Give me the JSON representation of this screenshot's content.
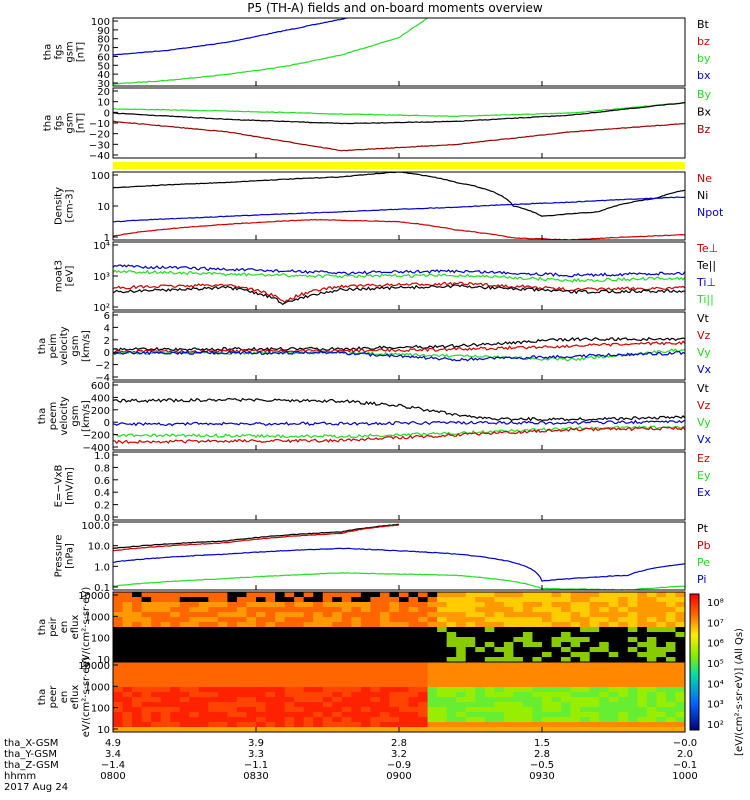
{
  "title": "P5 (TH-A) fields and on-board moments overview",
  "colors": {
    "black": "#000000",
    "red": "#cc0000",
    "green": "#22dd22",
    "blue": "#0000cc",
    "darkred": "#990000",
    "yellow": "#ffff00"
  },
  "chart_data": [
    {
      "type": "line",
      "ylabel": "tha fgs gsm [nT]",
      "ylim": [
        30,
        100
      ],
      "yticks": [
        "100",
        "90",
        "80",
        "70",
        "60",
        "50",
        "40",
        "30"
      ],
      "legend": [
        {
          "name": "Bt",
          "color": "#000000"
        },
        {
          "name": "bz",
          "color": "#cc0000"
        },
        {
          "name": "by",
          "color": "#22dd22"
        },
        {
          "name": "bx",
          "color": "#0000cc"
        }
      ],
      "series": [
        {
          "name": "bx",
          "color": "#0000cc",
          "x": [
            0,
            0.1,
            0.2,
            0.3,
            0.41
          ],
          "y": [
            62,
            67,
            75,
            87,
            100
          ]
        },
        {
          "name": "by",
          "color": "#22dd22",
          "x": [
            0,
            0.1,
            0.2,
            0.3,
            0.4,
            0.5,
            0.55
          ],
          "y": [
            32,
            36,
            42,
            50,
            62,
            80,
            100
          ]
        }
      ]
    },
    {
      "type": "line",
      "ylabel": "tha fgs gsm [nT]",
      "ylim": [
        -45,
        22
      ],
      "yticks": [
        "20",
        "10",
        "0",
        "−10",
        "−20",
        "−30",
        "−40"
      ],
      "legend": [
        {
          "name": "By",
          "color": "#22dd22"
        },
        {
          "name": "Bx",
          "color": "#000000"
        },
        {
          "name": "Bz",
          "color": "#990000"
        }
      ],
      "series": [
        {
          "name": "By",
          "color": "#22dd22",
          "x": [
            0,
            0.2,
            0.4,
            0.6,
            0.8,
            1.0
          ],
          "y": [
            2,
            0,
            -3,
            -5,
            -2,
            8
          ]
        },
        {
          "name": "Bx",
          "color": "#000000",
          "x": [
            0,
            0.2,
            0.4,
            0.6,
            0.8,
            1.0
          ],
          "y": [
            -2,
            -8,
            -12,
            -10,
            -4,
            8
          ]
        },
        {
          "name": "Bz",
          "color": "#990000",
          "x": [
            0,
            0.2,
            0.4,
            0.6,
            0.8,
            1.0
          ],
          "y": [
            -10,
            -20,
            -38,
            -32,
            -20,
            -12
          ]
        }
      ]
    },
    {
      "type": "line",
      "ylabel": "Density [cm-3]",
      "yscale": "log",
      "ylim": [
        0.5,
        200
      ],
      "yticks": [
        "100",
        "10",
        "1"
      ],
      "legend": [
        {
          "name": "Ne",
          "color": "#cc0000"
        },
        {
          "name": "Ni",
          "color": "#000000"
        },
        {
          "name": "Npot",
          "color": "#0000cc"
        }
      ],
      "series": [
        {
          "name": "Ni",
          "color": "#000000",
          "x": [
            0,
            0.2,
            0.4,
            0.5,
            0.6,
            0.7,
            0.75,
            0.85,
            0.95,
            1.0
          ],
          "y": [
            50,
            80,
            130,
            200,
            80,
            10,
            4,
            6,
            20,
            40
          ]
        },
        {
          "name": "Npot",
          "color": "#0000cc",
          "x": [
            0,
            0.2,
            0.4,
            0.6,
            0.8,
            1.0
          ],
          "y": [
            2.5,
            4,
            6,
            9,
            14,
            22
          ]
        },
        {
          "name": "Ne",
          "color": "#cc0000",
          "x": [
            0,
            0.2,
            0.35,
            0.5,
            0.6,
            0.7,
            0.8,
            1.0
          ],
          "y": [
            0.7,
            2,
            3,
            2.5,
            1.2,
            0.6,
            0.5,
            0.8
          ]
        }
      ]
    },
    {
      "type": "line",
      "ylabel": "moat3 [eV]",
      "yscale": "log",
      "ylim": [
        70,
        50000
      ],
      "yticks": [
        "10⁴",
        "10³",
        "10²"
      ],
      "legend": [
        {
          "name": "Te⊥",
          "color": "#cc0000"
        },
        {
          "name": "Te||",
          "color": "#000000"
        },
        {
          "name": "Ti⊥",
          "color": "#0000cc"
        },
        {
          "name": "Ti||",
          "color": "#22dd22"
        }
      ],
      "series": [
        {
          "name": "Ti⊥",
          "color": "#0000cc",
          "x": [
            0,
            0.2,
            0.4,
            0.6,
            0.8,
            1.0
          ],
          "y": [
            5000,
            3500,
            2500,
            3000,
            2000,
            2500
          ]
        },
        {
          "name": "Ti||",
          "color": "#22dd22",
          "x": [
            0,
            0.2,
            0.4,
            0.6,
            0.8,
            1.0
          ],
          "y": [
            3000,
            2200,
            1800,
            2000,
            1200,
            1500
          ]
        },
        {
          "name": "Te⊥",
          "color": "#cc0000",
          "x": [
            0,
            0.2,
            0.3,
            0.4,
            0.6,
            0.8,
            1.0
          ],
          "y": [
            600,
            800,
            150,
            700,
            900,
            500,
            600
          ]
        },
        {
          "name": "Te||",
          "color": "#000000",
          "x": [
            0,
            0.2,
            0.3,
            0.4,
            0.6,
            0.8,
            1.0
          ],
          "y": [
            400,
            600,
            120,
            500,
            700,
            400,
            450
          ]
        }
      ]
    },
    {
      "type": "line",
      "ylabel": "tha peim velocity gsm [km/s]",
      "ylim": [
        -4,
        6
      ],
      "yticks": [
        "6",
        "4",
        "2",
        "0",
        "−2",
        "−4"
      ],
      "legend": [
        {
          "name": "Vt",
          "color": "#000000"
        },
        {
          "name": "Vz",
          "color": "#cc0000"
        },
        {
          "name": "Vy",
          "color": "#22dd22"
        },
        {
          "name": "Vx",
          "color": "#0000cc"
        }
      ],
      "series": [
        {
          "name": "Vt",
          "color": "#000000",
          "x": [
            0,
            0.4,
            0.6,
            0.8,
            1.0
          ],
          "y": [
            0.5,
            0.6,
            1,
            2,
            2
          ]
        },
        {
          "name": "Vz",
          "color": "#cc0000",
          "x": [
            0,
            0.4,
            0.6,
            0.8,
            1.0
          ],
          "y": [
            0.2,
            0.3,
            0.5,
            1,
            1.5
          ]
        },
        {
          "name": "Vy",
          "color": "#22dd22",
          "x": [
            0,
            0.4,
            0.6,
            0.8,
            1.0
          ],
          "y": [
            0,
            0,
            -0.5,
            -1,
            0.5
          ]
        },
        {
          "name": "Vx",
          "color": "#0000cc",
          "x": [
            0,
            0.4,
            0.6,
            0.8,
            1.0
          ],
          "y": [
            0,
            0,
            -1,
            -0.5,
            0
          ]
        }
      ]
    },
    {
      "type": "line",
      "ylabel": "tha peem velocity gsm [km/s]",
      "ylim": [
        -400,
        600
      ],
      "yticks": [
        "600",
        "400",
        "200",
        "0",
        "−200",
        "−400"
      ],
      "legend": [
        {
          "name": "Vt",
          "color": "#000000"
        },
        {
          "name": "Vz",
          "color": "#cc0000"
        },
        {
          "name": "Vy",
          "color": "#22dd22"
        },
        {
          "name": "Vx",
          "color": "#0000cc"
        }
      ],
      "series": [
        {
          "name": "Vt",
          "color": "#000000",
          "x": [
            0,
            0.2,
            0.4,
            0.5,
            0.65,
            0.8,
            1.0
          ],
          "y": [
            320,
            340,
            320,
            250,
            60,
            50,
            80
          ]
        },
        {
          "name": "Vx",
          "color": "#0000cc",
          "x": [
            0,
            0.4,
            0.6,
            0.8,
            1.0
          ],
          "y": [
            -20,
            -10,
            0,
            0,
            20
          ]
        },
        {
          "name": "Vy",
          "color": "#22dd22",
          "x": [
            0,
            0.4,
            0.6,
            0.8,
            1.0
          ],
          "y": [
            -180,
            -200,
            -150,
            -80,
            -60
          ]
        },
        {
          "name": "Vz",
          "color": "#cc0000",
          "x": [
            0,
            0.4,
            0.6,
            0.8,
            1.0
          ],
          "y": [
            -280,
            -260,
            -180,
            -100,
            -80
          ]
        }
      ]
    },
    {
      "type": "line",
      "ylabel": "E=−VxB [mV/m]",
      "ylim": [
        0,
        1
      ],
      "yticks": [
        "1.0",
        "0.8",
        "0.6",
        "0.4",
        "0.2",
        "0.0"
      ],
      "legend": [
        {
          "name": "Ez",
          "color": "#cc0000"
        },
        {
          "name": "Ey",
          "color": "#22dd22"
        },
        {
          "name": "Ex",
          "color": "#0000cc"
        }
      ],
      "series": []
    },
    {
      "type": "line",
      "ylabel": "Pressure [nPa]",
      "yscale": "log",
      "ylim": [
        0.05,
        200
      ],
      "yticks": [
        "100.0",
        "10.0",
        "1.0",
        "0.1"
      ],
      "legend": [
        {
          "name": "Pt",
          "color": "#000000"
        },
        {
          "name": "Pb",
          "color": "#cc0000"
        },
        {
          "name": "Pe",
          "color": "#22dd22"
        },
        {
          "name": "Pi",
          "color": "#0000cc"
        }
      ],
      "series": [
        {
          "name": "Pt",
          "color": "#000000",
          "x": [
            0,
            0.2,
            0.4,
            0.5
          ],
          "y": [
            8,
            20,
            60,
            150
          ]
        },
        {
          "name": "Pb",
          "color": "#cc0000",
          "x": [
            0,
            0.2,
            0.4,
            0.5
          ],
          "y": [
            6,
            16,
            50,
            140
          ]
        },
        {
          "name": "Pi",
          "color": "#0000cc",
          "x": [
            0,
            0.2,
            0.4,
            0.6,
            0.75,
            0.9,
            1.0
          ],
          "y": [
            1.5,
            4,
            8,
            4,
            0.15,
            0.3,
            1.2
          ]
        },
        {
          "name": "Pe",
          "color": "#22dd22",
          "x": [
            0,
            0.2,
            0.4,
            0.6,
            0.75,
            0.9,
            1.0
          ],
          "y": [
            0.08,
            0.2,
            0.4,
            0.3,
            0.06,
            0.05,
            0.08
          ]
        }
      ]
    },
    {
      "type": "heatmap",
      "ylabel": "tha peir en eflux eV/(cm²·s·sr·eV)",
      "yscale": "log",
      "yticks": [
        "10000",
        "1000",
        "100",
        "10"
      ]
    },
    {
      "type": "heatmap",
      "ylabel": "tha peer en eflux eV/(cm²·s·sr·eV)",
      "yscale": "log",
      "yticks": [
        "10000",
        "1000",
        "100",
        "10"
      ]
    }
  ],
  "colorbar": {
    "label": "[eV/(cm²·s·sr·eV)] (All Qs)",
    "ticks": [
      "10⁸",
      "10⁷",
      "10⁶",
      "10⁵",
      "10⁴",
      "10³",
      "10²"
    ]
  },
  "xaxis": {
    "row_labels": [
      "tha_X-GSM",
      "tha_Y-GSM",
      "tha_Z-GSM",
      "hhmm",
      "2017 Aug 24"
    ],
    "columns": [
      {
        "vals": [
          "4.9",
          "3.4",
          "−1.4",
          "0800"
        ]
      },
      {
        "vals": [
          "3.9",
          "3.3",
          "−1.1",
          "0830"
        ]
      },
      {
        "vals": [
          "2.8",
          "3.2",
          "−0.9",
          "0900"
        ]
      },
      {
        "vals": [
          "1.5",
          "2.8",
          "−0.5",
          "0930"
        ]
      },
      {
        "vals": [
          "−0.0",
          "2.0",
          "−0.1",
          "1000"
        ]
      }
    ]
  }
}
